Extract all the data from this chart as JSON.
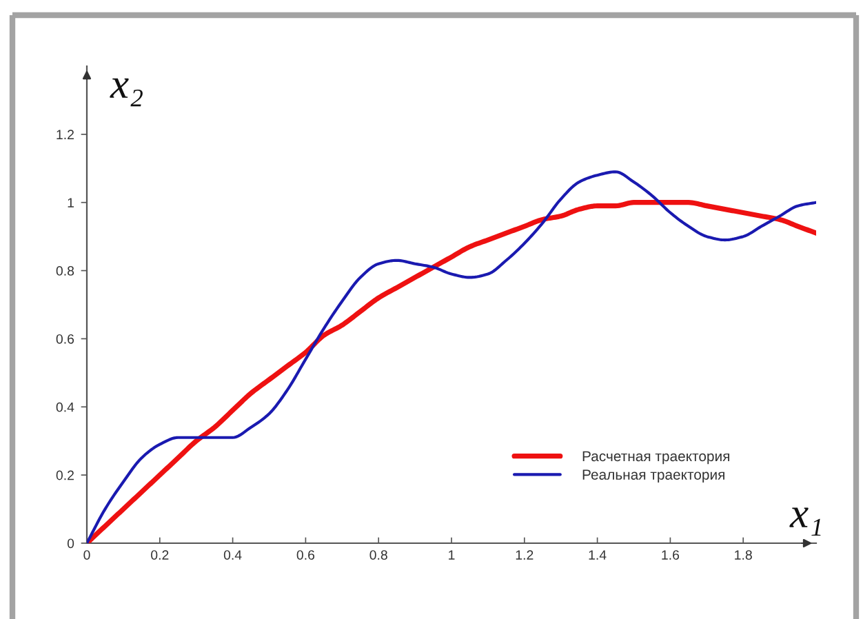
{
  "chart_data": {
    "type": "line",
    "xlabel": "x₁",
    "ylabel": "x₂",
    "x": [
      0,
      0.05,
      0.1,
      0.15,
      0.2,
      0.25,
      0.3,
      0.35,
      0.4,
      0.45,
      0.5,
      0.55,
      0.6,
      0.65,
      0.7,
      0.75,
      0.8,
      0.85,
      0.9,
      0.95,
      1,
      1.05,
      1.1,
      1.15,
      1.2,
      1.25,
      1.3,
      1.35,
      1.4,
      1.45,
      1.5,
      1.55,
      1.6,
      1.65,
      1.7,
      1.75,
      1.8,
      1.85,
      1.9,
      1.95,
      2
    ],
    "series": [
      {
        "name": "Расчетная траектория",
        "color": "#ee1111",
        "values": [
          0,
          0.05,
          0.1,
          0.15,
          0.2,
          0.25,
          0.3,
          0.34,
          0.39,
          0.44,
          0.48,
          0.52,
          0.56,
          0.61,
          0.64,
          0.68,
          0.72,
          0.75,
          0.78,
          0.81,
          0.84,
          0.87,
          0.89,
          0.91,
          0.93,
          0.95,
          0.96,
          0.98,
          0.99,
          0.99,
          1.0,
          1.0,
          1.0,
          1.0,
          0.99,
          0.98,
          0.97,
          0.96,
          0.95,
          0.93,
          0.91
        ]
      },
      {
        "name": "Реальная траектория",
        "color": "#1a1ab0",
        "values": [
          0,
          0.1,
          0.18,
          0.25,
          0.29,
          0.31,
          0.31,
          0.31,
          0.31,
          0.34,
          0.38,
          0.45,
          0.54,
          0.63,
          0.71,
          0.78,
          0.82,
          0.83,
          0.82,
          0.81,
          0.79,
          0.78,
          0.79,
          0.83,
          0.88,
          0.94,
          1.01,
          1.06,
          1.08,
          1.09,
          1.06,
          1.02,
          0.97,
          0.93,
          0.9,
          0.89,
          0.9,
          0.93,
          0.96,
          0.99,
          1.0
        ]
      }
    ],
    "xlim": [
      0,
      2.0
    ],
    "ylim": [
      0,
      1.4
    ],
    "xticks": [
      0,
      0.2,
      0.4,
      0.6,
      0.8,
      1,
      1.2,
      1.4,
      1.6,
      1.8
    ],
    "yticks": [
      0,
      0.2,
      0.4,
      0.6,
      0.8,
      1,
      1.2
    ],
    "legend": "bottom right",
    "marker": "none",
    "line_style": "solid"
  }
}
